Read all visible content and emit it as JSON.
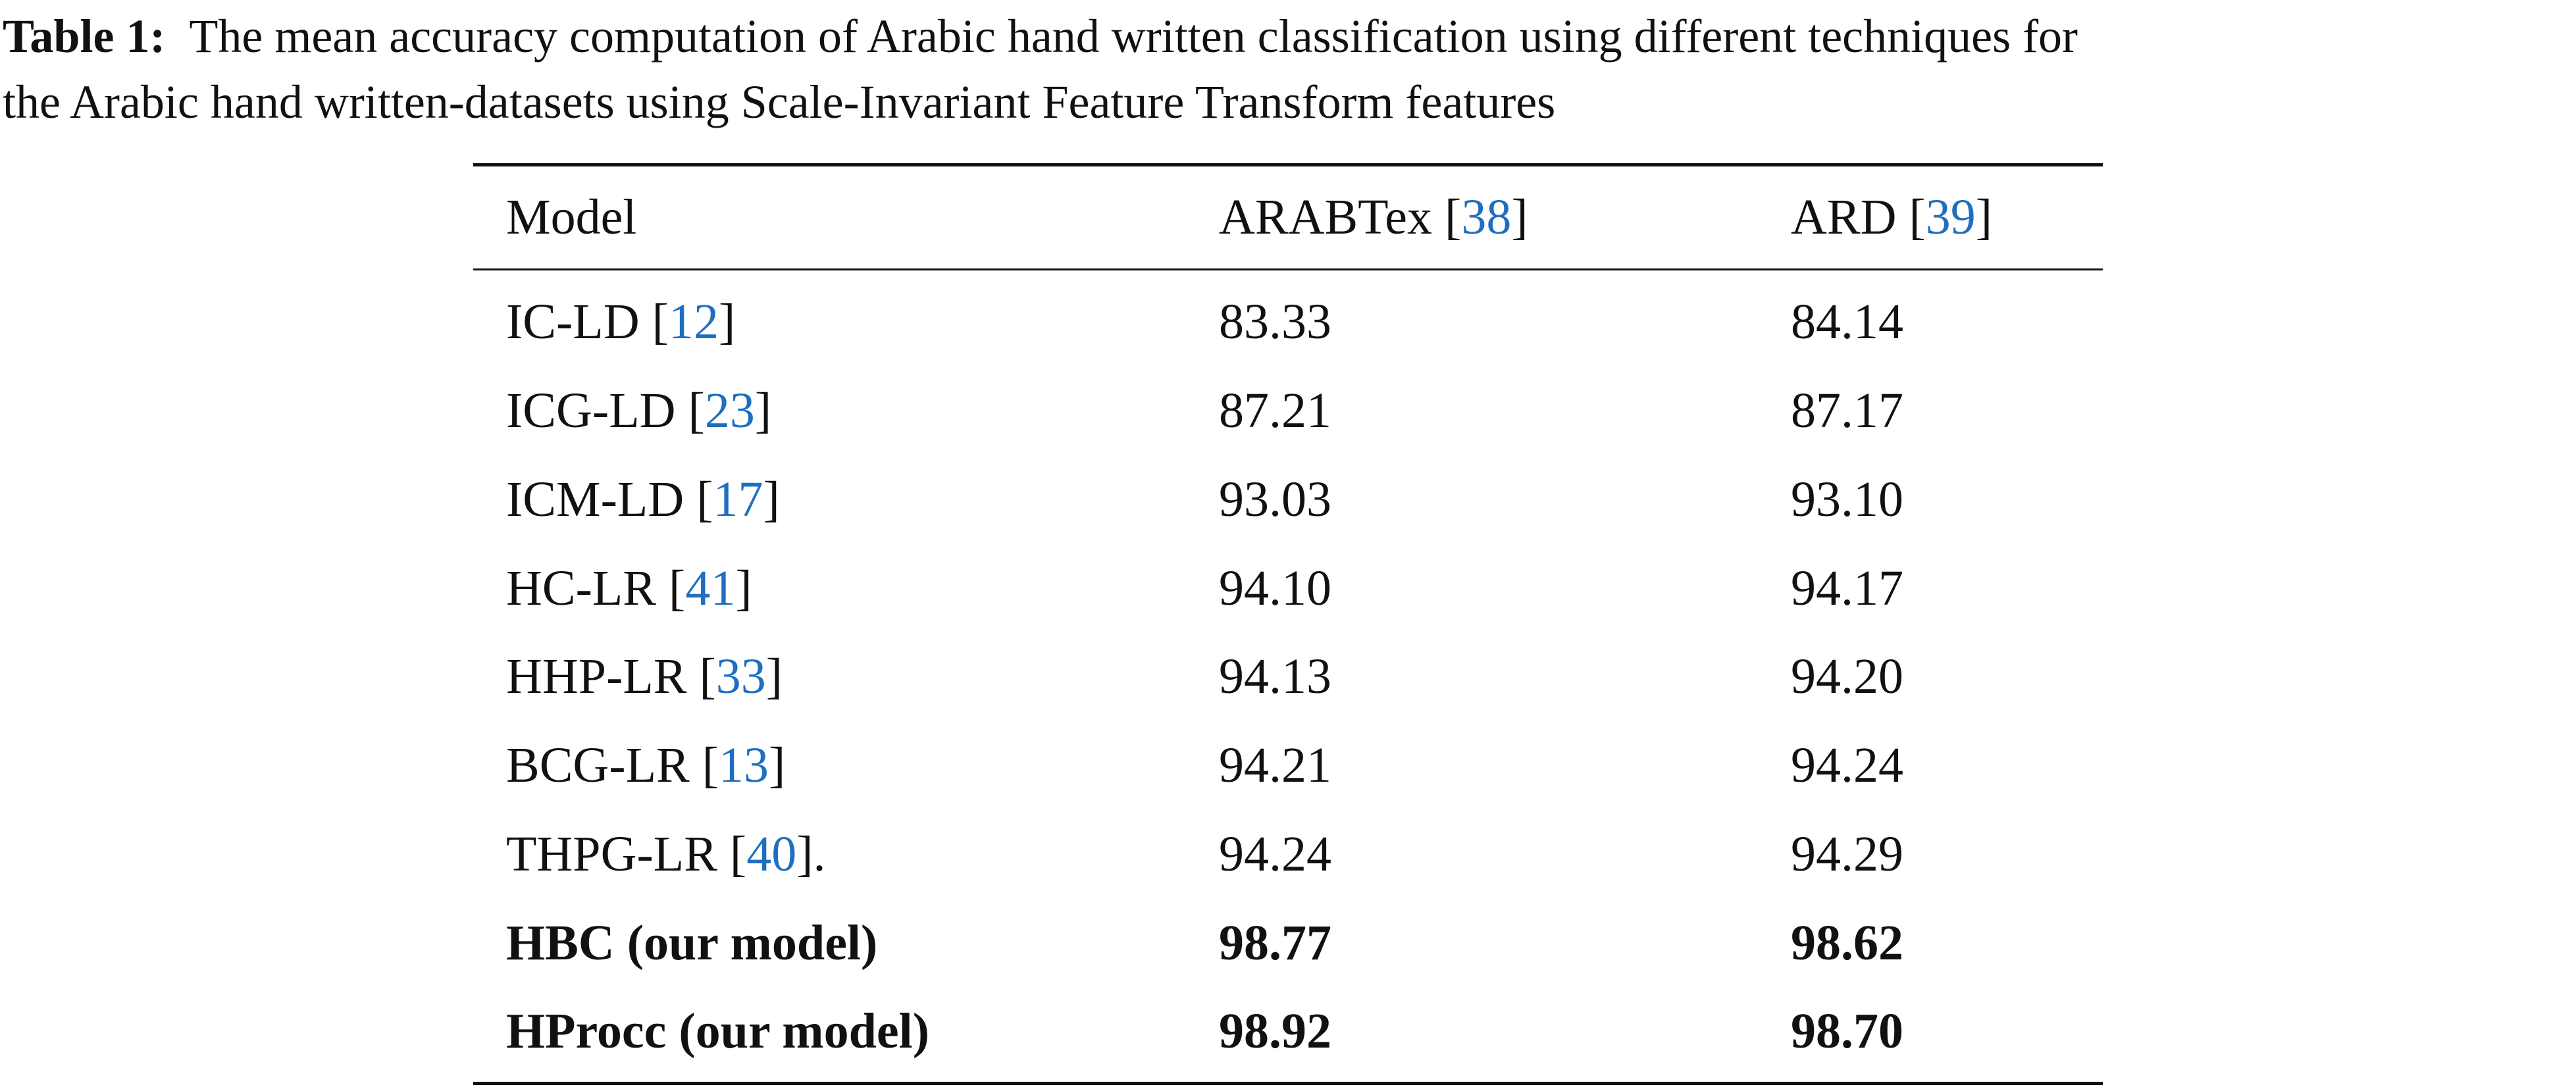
{
  "caption": {
    "label": "Table 1:",
    "lines": [
      "The mean accuracy computation of Arabic hand written classification using different techniques for",
      "the Arabic hand written-datasets using Scale-Invariant Feature Transform features"
    ]
  },
  "table": {
    "header": [
      {
        "text": "Model"
      },
      {
        "text": "ARABTex [",
        "ref": "38",
        "after": "]"
      },
      {
        "text": "ARD [",
        "ref": "39",
        "after": "]"
      }
    ],
    "rows": [
      {
        "model": {
          "text": "IC-LD [",
          "ref": "12",
          "after": "]"
        },
        "values": [
          "83.33",
          "84.14"
        ]
      },
      {
        "model": {
          "text": "ICG-LD [",
          "ref": "23",
          "after": "]"
        },
        "values": [
          "87.21",
          "87.17"
        ]
      },
      {
        "model": {
          "text": "ICM-LD [",
          "ref": "17",
          "after": "]"
        },
        "values": [
          "93.03",
          "93.10"
        ]
      },
      {
        "model": {
          "text": "HC-LR [",
          "ref": "41",
          "after": "]"
        },
        "values": [
          "94.10",
          "94.17"
        ]
      },
      {
        "model": {
          "text": "HHP-LR [",
          "ref": "33",
          "after": "]"
        },
        "values": [
          "94.13",
          "94.20"
        ]
      },
      {
        "model": {
          "text": "BCG-LR [",
          "ref": "13",
          "after": "]"
        },
        "values": [
          "94.21",
          "94.24"
        ]
      },
      {
        "model": {
          "text": "THPG-LR [",
          "ref": "40",
          "after": "]."
        },
        "values": [
          "94.24",
          "94.29"
        ]
      },
      {
        "model": {
          "text": "HBC (our model)"
        },
        "values": [
          "98.77",
          "98.62"
        ],
        "bold": true
      },
      {
        "model": {
          "text": "HProcc (our model)"
        },
        "values": [
          "98.92",
          "98.70"
        ],
        "bold": true
      }
    ]
  }
}
